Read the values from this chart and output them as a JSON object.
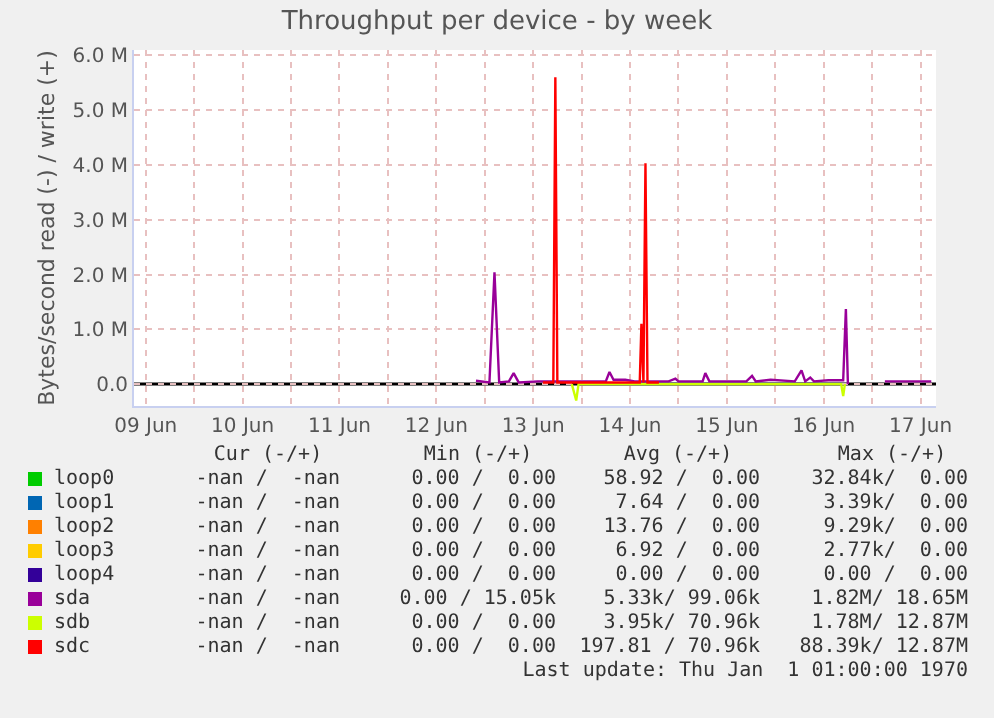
{
  "chart_data": {
    "type": "line",
    "title": "Throughput per device - by week",
    "ylabel": "Bytes/second read (-) / write (+)",
    "xlim": [
      "--06-09T09:05",
      "--06-17T15:50"
    ],
    "xticks": [
      {
        "value": "--06-09T12:00",
        "label": "09 Jun"
      },
      {
        "value": "--06-10T00:00",
        "label": null
      },
      {
        "value": "--06-10T12:00",
        "label": "10 Jun"
      },
      {
        "value": "--06-11T00:00",
        "label": null
      },
      {
        "value": "--06-11T12:00",
        "label": "11 Jun"
      },
      {
        "value": "--06-12T00:00",
        "label": null
      },
      {
        "value": "--06-12T12:00",
        "label": "12 Jun"
      },
      {
        "value": "--06-13T00:00",
        "label": null
      },
      {
        "value": "--06-13T12:00",
        "label": "13 Jun"
      },
      {
        "value": "--06-14T00:00",
        "label": null
      },
      {
        "value": "--06-14T12:00",
        "label": "14 Jun"
      },
      {
        "value": "--06-15T00:00",
        "label": null
      },
      {
        "value": "--06-15T12:00",
        "label": "15 Jun"
      },
      {
        "value": "--06-16T00:00",
        "label": null
      },
      {
        "value": "--06-16T12:00",
        "label": "16 Jun"
      },
      {
        "value": "--06-17T00:00",
        "label": null
      },
      {
        "value": "--06-17T12:00",
        "label": "17 Jun"
      }
    ],
    "ylim": [
      -400000,
      6100000
    ],
    "yticks": [
      {
        "value": 0,
        "label": "0.0"
      },
      {
        "value": 1000000,
        "label": "1.0 M"
      },
      {
        "value": 2000000,
        "label": "2.0 M"
      },
      {
        "value": 3000000,
        "label": "3.0 M"
      },
      {
        "value": 4000000,
        "label": "4.0 M"
      },
      {
        "value": 5000000,
        "label": "5.0 M"
      },
      {
        "value": 6000000,
        "label": "6.0 M"
      }
    ],
    "grid": true,
    "legend": "bottom",
    "ref_lines": [
      {
        "axis": "y",
        "value": 0,
        "color": "#000000"
      }
    ],
    "series": [
      {
        "name": "loop0",
        "color": "#00cc00"
      },
      {
        "name": "loop1",
        "color": "#0066b3"
      },
      {
        "name": "loop2",
        "color": "#ff8000"
      },
      {
        "name": "loop3",
        "color": "#ffcc00"
      },
      {
        "name": "loop4",
        "color": "#330099"
      },
      {
        "name": "sda",
        "color": "#990099",
        "x": [
          "--06-12T21:50",
          "--06-13T01:10",
          "--06-13T02:25",
          "--06-13T03:35",
          "--06-13T06:00",
          "--06-13T07:10",
          "--06-13T08:25",
          "--06-13T13:10",
          "--06-13T18:00",
          "--06-14T00:00",
          "--06-14T06:00",
          "--06-14T06:55",
          "--06-14T07:55",
          "--06-14T10:50",
          "--06-14T13:10",
          "--06-14T21:35",
          "--06-14T23:15",
          "--06-15T00:00",
          "--06-15T06:00",
          "--06-15T06:40",
          "--06-15T07:40",
          "--06-15T16:50",
          "--06-15T18:15",
          "--06-15T19:10",
          "--06-15T22:50",
          "--06-16T04:50",
          "--06-16T06:30",
          "--06-16T07:25",
          "--06-16T08:40",
          "--06-16T09:35",
          "--06-16T13:10",
          "--06-16T16:50",
          "--06-16T17:30",
          "--06-16T18:00",
          "--06-16T18:15",
          "--06-17T03:10",
          "--06-17T14:40"
        ],
        "values": [
          60000,
          30000,
          2040000,
          30000,
          50000,
          200000,
          30000,
          50000,
          50000,
          50000,
          50000,
          220000,
          80000,
          80000,
          50000,
          50000,
          100000,
          50000,
          50000,
          200000,
          50000,
          50000,
          150000,
          50000,
          80000,
          50000,
          250000,
          50000,
          120000,
          50000,
          70000,
          70000,
          1370000,
          0,
          null,
          50000,
          50000
        ]
      },
      {
        "name": "sdb",
        "color": "#ccff00",
        "x": [
          "--06-13T21:35",
          "--06-13T22:40",
          "--06-13T23:15",
          "--06-16T16:20",
          "--06-16T16:50",
          "--06-16T17:15"
        ],
        "values": [
          0,
          -300000,
          0,
          0,
          -220000,
          0
        ]
      },
      {
        "name": "sdc",
        "color": "#ff0000",
        "x": [
          "--06-13T14:25",
          "--06-13T17:00",
          "--06-13T17:30",
          "--06-13T18:00",
          "--06-14T14:25",
          "--06-14T14:50",
          "--06-14T15:20",
          "--06-14T15:50",
          "--06-14T16:20",
          "--06-14T19:10"
        ],
        "values": [
          30000,
          30000,
          5600000,
          30000,
          30000,
          1100000,
          30000,
          4030000,
          30000,
          30000
        ]
      }
    ],
    "annotations": [
      "Cur (-/+)",
      "Min (-/+)",
      "Avg (-/+)",
      "Max (-/+)",
      "-nan /  -nan",
      "0.00 /  0.00",
      "58.92 /  0.00",
      "32.84k/  0.00",
      "-nan /  -nan",
      "0.00 /  0.00",
      "7.64 /  0.00",
      "3.39k/  0.00",
      "-nan /  -nan",
      "0.00 /  0.00",
      "13.76 /  0.00",
      "9.29k/  0.00",
      "-nan /  -nan",
      "0.00 /  0.00",
      "6.92 /  0.00",
      "2.77k/  0.00",
      "-nan /  -nan",
      "0.00 /  0.00",
      "0.00 /  0.00",
      "0.00 /  0.00",
      "-nan /  -nan",
      "0.00 / 15.05k",
      "5.33k/ 99.06k",
      "1.82M/ 18.65M",
      "-nan /  -nan",
      "0.00 /  0.00",
      "3.95k/ 70.96k",
      "1.78M/ 12.87M",
      "-nan /  -nan",
      "0.00 /  0.00",
      "197.81 / 70.96k",
      "88.39k/ 12.87M",
      "Last update: Thu Jan  1 01:00:00 1970"
    ]
  }
}
